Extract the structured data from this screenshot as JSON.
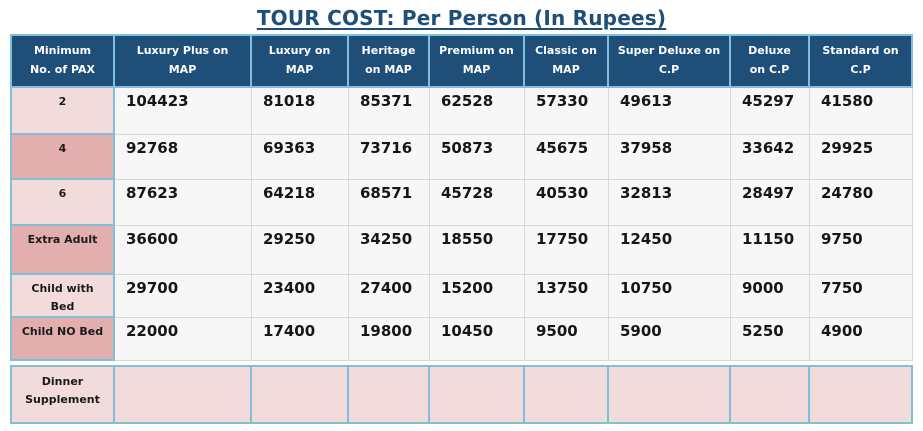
{
  "title": "TOUR COST: Per Person (In Rupees)",
  "colors": {
    "header_bg": "#1F4E79",
    "header_text": "#FFFFFF",
    "title_text": "#1F4E79",
    "border_blue": "#7FBFD9",
    "border_gray": "#D9D9D9",
    "label_light_pink": "#F2DCDB",
    "label_dark_pink": "#E2AFAE",
    "data_cell_bg": "#F7F7F7",
    "supplement_row_bg": "#F2DCDB",
    "value_text": "#161616"
  },
  "table": {
    "header": [
      "Minimum\nNo. of PAX",
      "Luxury Plus on\nMAP",
      "Luxury on\nMAP",
      "Heritage\non MAP",
      "Premium on\nMAP",
      "Classic on\nMAP",
      "Super Deluxe on\nC.P",
      "Deluxe\non C.P",
      "Standard on\nC.P"
    ],
    "rows": [
      {
        "label": "2",
        "shade": "light",
        "type": "data",
        "values": [
          "104423",
          "81018",
          "85371",
          "62528",
          "57330",
          "49613",
          "45297",
          "41580"
        ]
      },
      {
        "label": "4",
        "shade": "dark",
        "type": "data",
        "values": [
          "92768",
          "69363",
          "73716",
          "50873",
          "45675",
          "37958",
          "33642",
          "29925"
        ]
      },
      {
        "label": "6",
        "shade": "light",
        "type": "data",
        "values": [
          "87623",
          "64218",
          "68571",
          "45728",
          "40530",
          "32813",
          "28497",
          "24780"
        ]
      },
      {
        "label": "Extra Adult",
        "shade": "dark",
        "type": "data",
        "values": [
          "36600",
          "29250",
          "34250",
          "18550",
          "17750",
          "12450",
          "11150",
          "9750"
        ]
      },
      {
        "label": "Child with\nBed",
        "shade": "light",
        "type": "data",
        "values": [
          "29700",
          "23400",
          "27400",
          "15200",
          "13750",
          "10750",
          "9000",
          "7750"
        ]
      },
      {
        "label": "Child NO Bed",
        "shade": "dark",
        "type": "data",
        "separator_after": true,
        "values": [
          "22000",
          "17400",
          "19800",
          "10450",
          "9500",
          "5900",
          "5250",
          "4900"
        ]
      },
      {
        "label": "Dinner\nSupplement",
        "shade": "light",
        "type": "supplement",
        "values": [
          "",
          "",
          "",
          "",
          "",
          "",
          "",
          ""
        ]
      }
    ]
  }
}
